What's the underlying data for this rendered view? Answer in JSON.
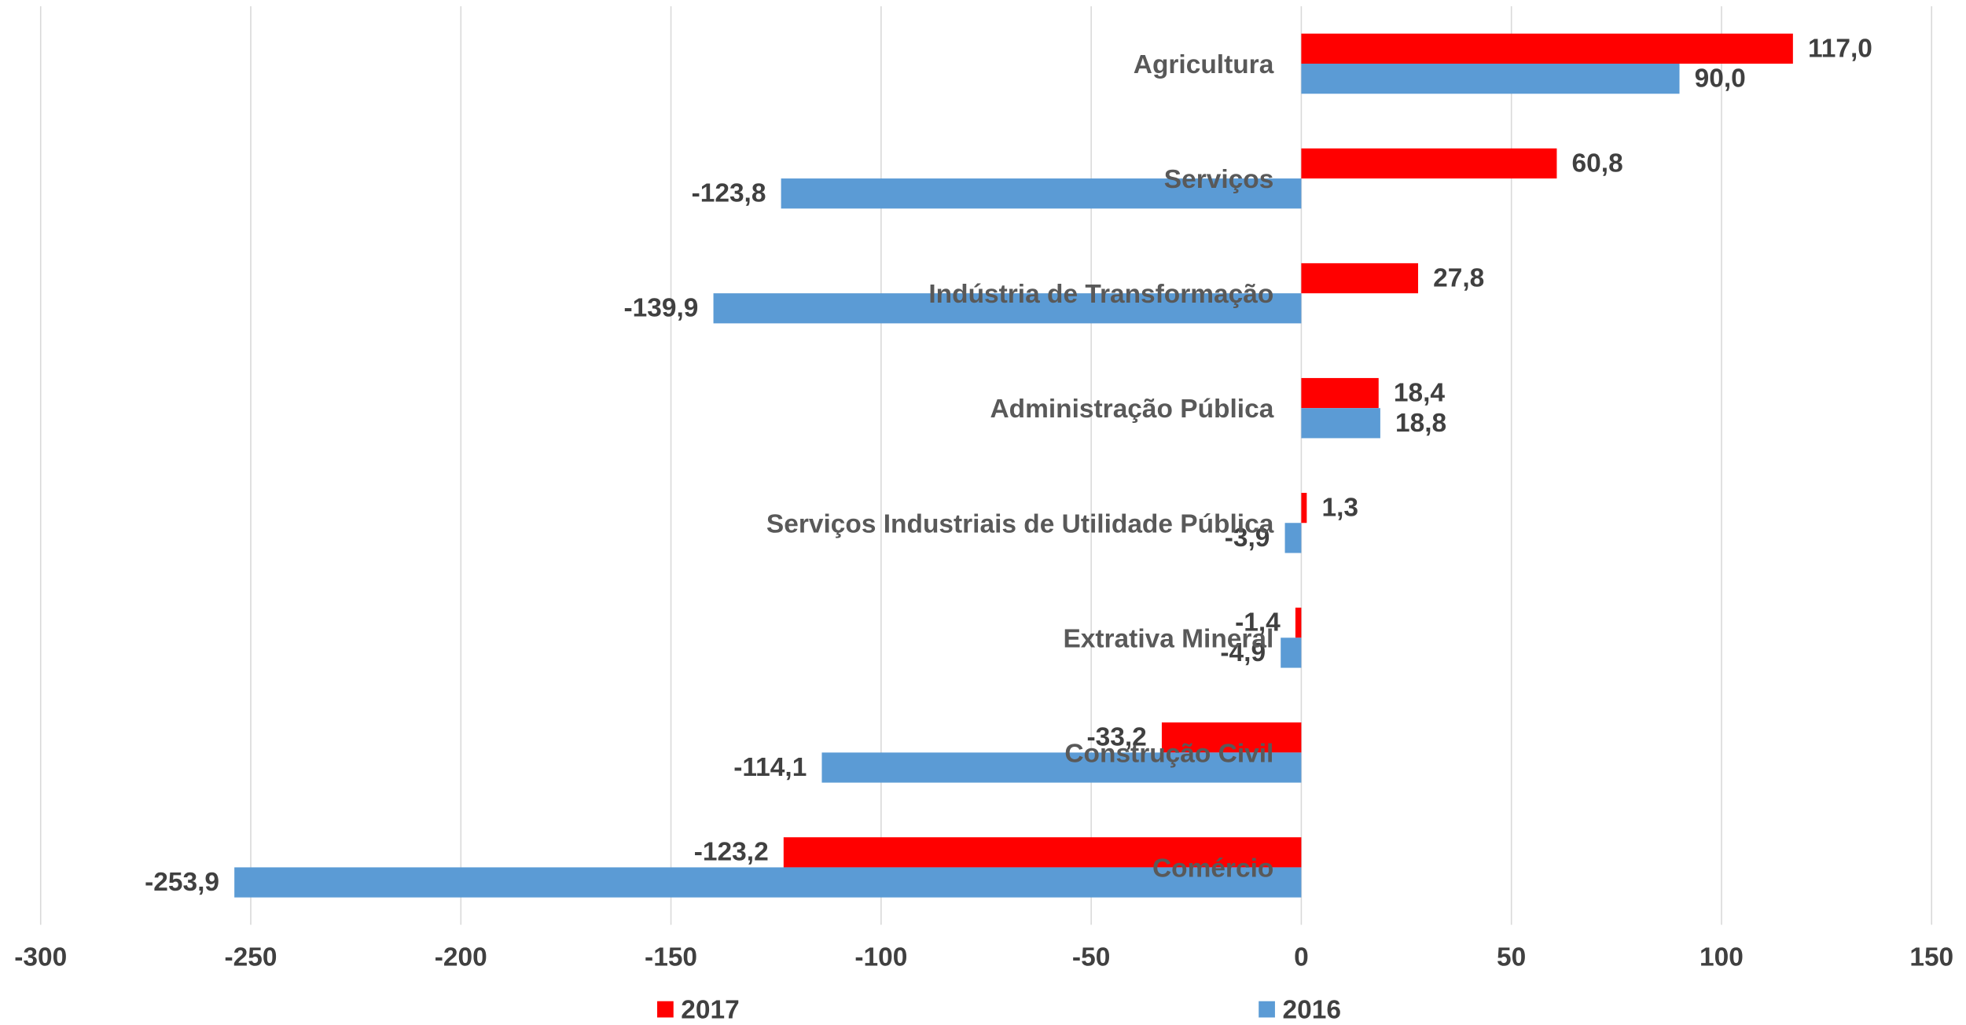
{
  "chart_data": {
    "type": "barh",
    "categories": [
      "Agricultura",
      "Serviços",
      "Indústria de Transformação",
      "Administração Pública",
      "Serviços Industriais de Utilidade Pública",
      "Extrativa Mineral",
      "Construção Civil",
      "Comércio"
    ],
    "series": [
      {
        "name": "2017",
        "color": "#ff0000",
        "values": [
          117.0,
          60.8,
          27.8,
          18.4,
          1.3,
          -1.4,
          -33.2,
          -123.2
        ],
        "value_labels": [
          "117,0",
          "60,8",
          "27,8",
          "18,4",
          "1,3",
          "-1,4",
          "-33,2",
          "-123,2"
        ]
      },
      {
        "name": "2016",
        "color": "#5b9bd5",
        "values": [
          90.0,
          -123.8,
          -139.9,
          18.8,
          -3.9,
          -4.9,
          -114.1,
          -253.9
        ],
        "value_labels": [
          "90,0",
          "-123,8",
          "-139,9",
          "18,8",
          "-3,9",
          "-4,9",
          "-114,1",
          "-253,9"
        ]
      }
    ],
    "xlim": [
      -300,
      150
    ],
    "xticks": [
      -300,
      -250,
      -200,
      -150,
      -100,
      -50,
      0,
      50,
      100,
      150
    ],
    "grid": true
  }
}
